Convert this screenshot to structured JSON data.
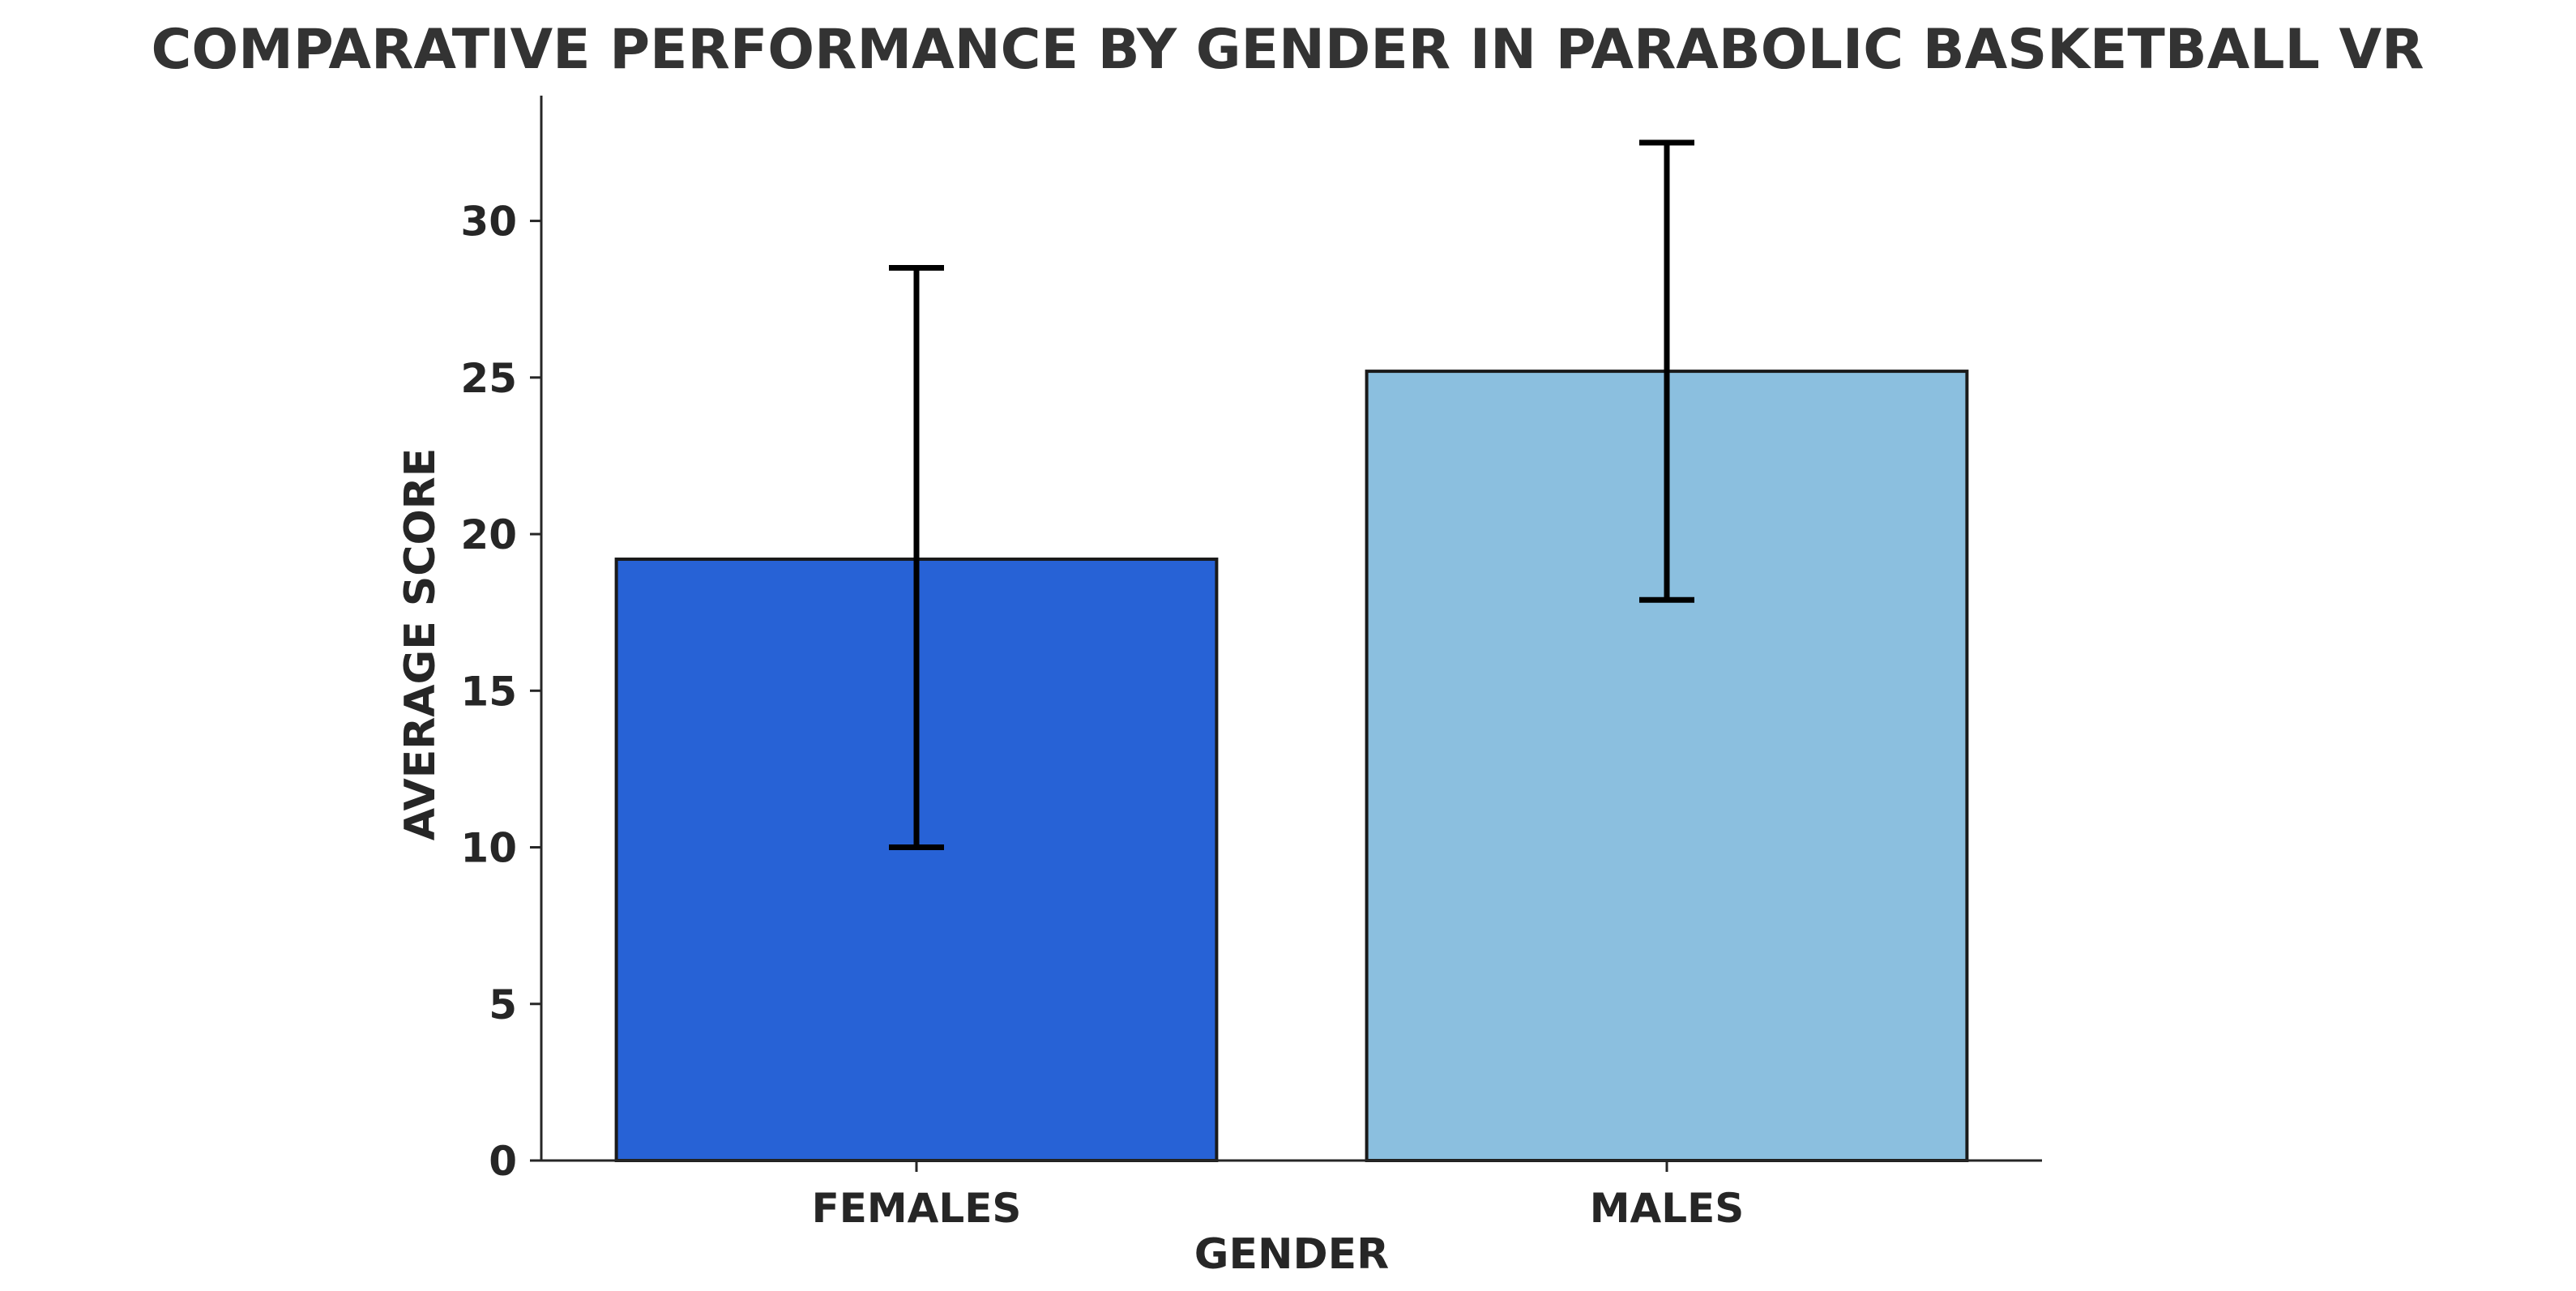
{
  "chart_data": {
    "type": "bar",
    "title": "COMPARATIVE PERFORMANCE BY GENDER IN PARABOLIC BASKETBALL VR",
    "xlabel": "GENDER",
    "ylabel": "AVERAGE SCORE",
    "categories": [
      "FEMALES",
      "MALES"
    ],
    "values": [
      19.2,
      25.2
    ],
    "error": [
      {
        "low": 10.0,
        "high": 28.5
      },
      {
        "low": 17.9,
        "high": 32.5
      }
    ],
    "colors": [
      "#2762d6",
      "#8bbfdf"
    ],
    "ylim": [
      0,
      34
    ],
    "yticks": [
      0,
      5,
      10,
      15,
      20,
      25,
      30
    ],
    "grid": false,
    "legend": "none"
  }
}
